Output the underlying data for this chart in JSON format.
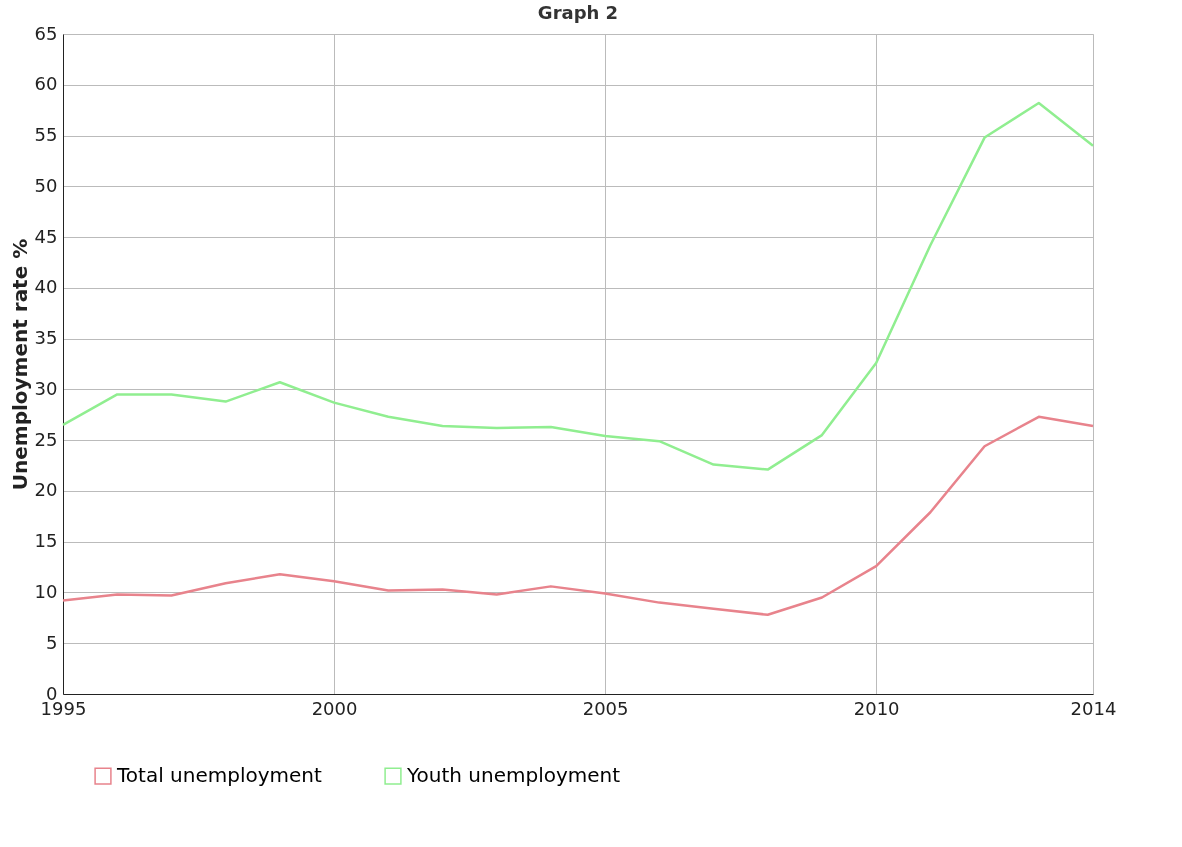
{
  "chart_data": {
    "type": "line",
    "title": "Graph 2",
    "ylabel": "Unemployment rate %",
    "x": [
      1995,
      1996,
      1997,
      1998,
      1999,
      2000,
      2001,
      2002,
      2003,
      2004,
      2005,
      2006,
      2007,
      2008,
      2009,
      2010,
      2011,
      2012,
      2013,
      2014
    ],
    "series": [
      {
        "name": "Total unemployment",
        "color": "#e8838c",
        "values": [
          9.2,
          9.8,
          9.7,
          10.9,
          11.8,
          11.1,
          10.2,
          10.3,
          9.8,
          10.6,
          9.9,
          9.0,
          8.4,
          7.8,
          9.5,
          12.6,
          17.9,
          24.4,
          27.3,
          26.4
        ]
      },
      {
        "name": "Youth unemployment",
        "color": "#90ee90",
        "values": [
          26.5,
          29.5,
          29.5,
          28.8,
          30.7,
          28.7,
          27.3,
          26.4,
          26.2,
          26.3,
          25.4,
          24.9,
          22.6,
          22.1,
          25.5,
          32.6,
          44.2,
          54.8,
          58.2,
          54.0
        ]
      }
    ],
    "xlim": [
      1995,
      2014
    ],
    "xticks": [
      1995,
      2000,
      2005,
      2010,
      2014
    ],
    "ylim": [
      0,
      65
    ],
    "yticks": [
      0,
      5,
      10,
      15,
      20,
      25,
      30,
      35,
      40,
      45,
      50,
      55,
      60,
      65
    ],
    "grid": true,
    "legend": "bottom",
    "marker": "none",
    "line_style": "solid"
  }
}
